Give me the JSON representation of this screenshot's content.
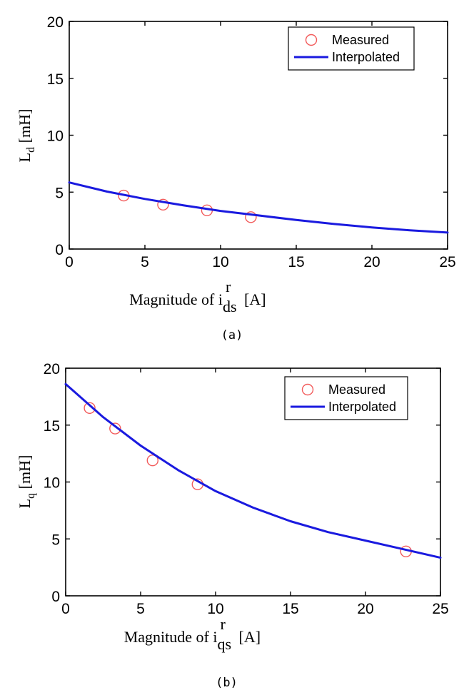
{
  "chart_data": [
    {
      "type": "line",
      "caption": "(a)",
      "ylabel_base": "L",
      "ylabel_sub": "d",
      "ylabel_unit": "[mH]",
      "xlabel_prefix": "Magnitude of i",
      "xlabel_sup": "r",
      "xlabel_sub": "ds",
      "xlabel_unit": "[A]",
      "xlim": [
        0,
        25
      ],
      "ylim": [
        0,
        20
      ],
      "xticks": [
        0,
        5,
        10,
        15,
        20,
        25
      ],
      "yticks": [
        0,
        5,
        10,
        15,
        20
      ],
      "grid": false,
      "legend_position": "top-right",
      "series": [
        {
          "name": "Measured",
          "kind": "markers",
          "marker": "circle",
          "color": "#f25b5b",
          "x": [
            3.6,
            6.2,
            9.1,
            12.0
          ],
          "y": [
            4.7,
            3.9,
            3.4,
            2.8
          ]
        },
        {
          "name": "Interpolated",
          "kind": "line",
          "color": "#1a1adf",
          "x": [
            0,
            2.5,
            5,
            7.5,
            10,
            12.5,
            15,
            17.5,
            20,
            22.5,
            25
          ],
          "y": [
            5.85,
            5.05,
            4.4,
            3.85,
            3.35,
            2.95,
            2.55,
            2.2,
            1.9,
            1.65,
            1.45
          ]
        }
      ]
    },
    {
      "type": "line",
      "caption": "(b)",
      "ylabel_base": "L",
      "ylabel_sub": "q",
      "ylabel_unit": "[mH]",
      "xlabel_prefix": "Magnitude of i",
      "xlabel_sup": "r",
      "xlabel_sub": "qs",
      "xlabel_unit": "[A]",
      "xlim": [
        0,
        25
      ],
      "ylim": [
        0,
        20
      ],
      "xticks": [
        0,
        5,
        10,
        15,
        20,
        25
      ],
      "yticks": [
        0,
        5,
        10,
        15,
        20
      ],
      "grid": false,
      "legend_position": "top-right",
      "series": [
        {
          "name": "Measured",
          "kind": "markers",
          "marker": "circle",
          "color": "#f25b5b",
          "x": [
            1.6,
            3.3,
            5.8,
            8.8,
            22.7
          ],
          "y": [
            16.5,
            14.7,
            11.9,
            9.8,
            3.9
          ]
        },
        {
          "name": "Interpolated",
          "kind": "line",
          "color": "#1a1adf",
          "x": [
            0,
            2.5,
            5,
            7.5,
            10,
            12.5,
            15,
            17.5,
            20,
            22.5,
            25
          ],
          "y": [
            18.6,
            15.7,
            13.2,
            11.05,
            9.2,
            7.75,
            6.55,
            5.6,
            4.85,
            4.1,
            3.35
          ]
        }
      ]
    }
  ]
}
